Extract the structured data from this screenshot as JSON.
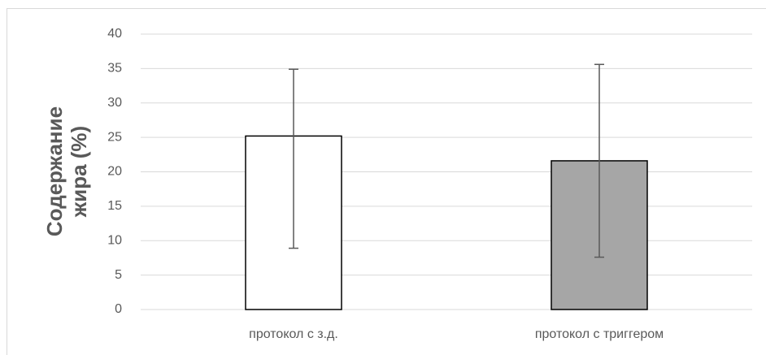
{
  "chart_data": {
    "type": "bar",
    "ylabel": "Содержание жира (%)",
    "categories": [
      "протокол с з.д.",
      "протокол с триггером"
    ],
    "values": [
      25.2,
      21.6
    ],
    "error_high": [
      34.9,
      35.6
    ],
    "error_low": [
      8.9,
      7.6
    ],
    "colors": [
      "#ffffff",
      "#a6a6a6"
    ],
    "ylim": [
      0,
      40
    ],
    "yticks": [
      0,
      5,
      10,
      15,
      20,
      25,
      30,
      35,
      40
    ],
    "grid": true
  }
}
